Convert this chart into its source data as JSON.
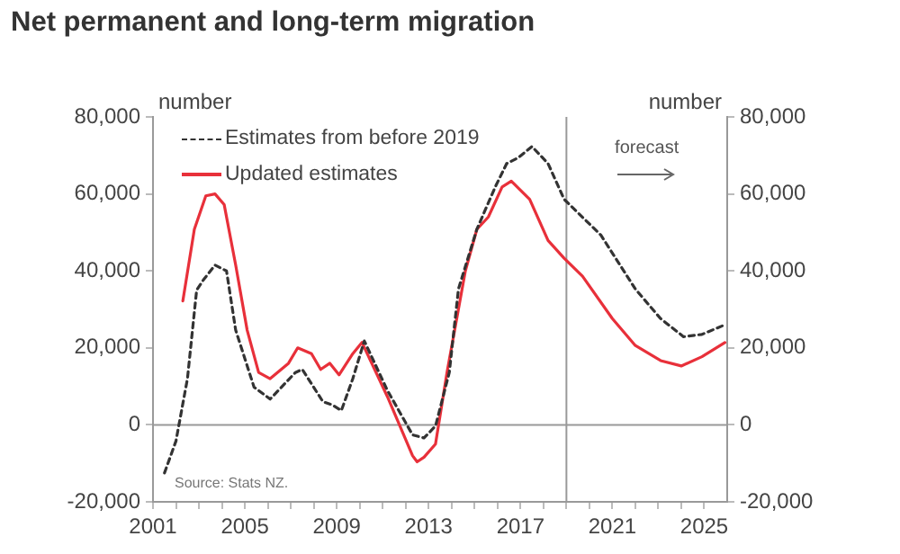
{
  "chart_data": {
    "type": "line",
    "title": "Net permanent and long-term migration",
    "ylabel": "number",
    "y2label": "number",
    "annotations": [
      "Source: Stats NZ."
    ],
    "xlim": [
      2001,
      2026
    ],
    "xticks": [
      2001,
      {
        "value": 2002,
        "label": null
      },
      {
        "value": 2003,
        "label": null
      },
      {
        "value": 2004,
        "label": null
      },
      2005,
      {
        "value": 2006,
        "label": null
      },
      {
        "value": 2007,
        "label": null
      },
      {
        "value": 2008,
        "label": null
      },
      2009,
      {
        "value": 2010,
        "label": null
      },
      {
        "value": 2011,
        "label": null
      },
      {
        "value": 2012,
        "label": null
      },
      2013,
      {
        "value": 2014,
        "label": null
      },
      {
        "value": 2015,
        "label": null
      },
      {
        "value": 2016,
        "label": null
      },
      2017,
      {
        "value": 2018,
        "label": null
      },
      {
        "value": 2019,
        "label": null
      },
      {
        "value": 2020,
        "label": null
      },
      2021,
      {
        "value": 2022,
        "label": null
      },
      {
        "value": 2023,
        "label": null
      },
      {
        "value": 2024,
        "label": null
      },
      2025
    ],
    "ylim": [
      -20000,
      80000
    ],
    "yticks": [
      {
        "value": -20000,
        "label": "-20,000"
      },
      0,
      {
        "value": 20000,
        "label": "20,000"
      },
      {
        "value": 40000,
        "label": "40,000"
      },
      {
        "value": 60000,
        "label": "60,000"
      },
      {
        "value": 80000,
        "label": "80,000"
      }
    ],
    "y2lim": [
      -20000,
      80000
    ],
    "y2ticks": [
      {
        "value": -20000,
        "label": "-20,000"
      },
      0,
      {
        "value": 20000,
        "label": "20,000"
      },
      {
        "value": 40000,
        "label": "40,000"
      },
      {
        "value": 60000,
        "label": "60,000"
      },
      {
        "value": 80000,
        "label": "80,000"
      }
    ],
    "grid": false,
    "legend": "top left",
    "marker": "none",
    "ref_lines": [
      {
        "axis": "y",
        "value": 0,
        "color": "#999999"
      },
      {
        "axis": "x",
        "value": 2019,
        "label": "forecast",
        "color": "#999999"
      }
    ],
    "series": [
      {
        "name": "Estimates from before 2019",
        "color": "#333333",
        "line_style": "dashed",
        "x": [
          2001.5,
          2002.0,
          2002.5,
          2002.9,
          2003.2,
          2003.7,
          2004.2,
          2004.6,
          2005.4,
          2006.1,
          2007.2,
          2007.5,
          2008.4,
          2008.8,
          2009.2,
          2009.7,
          2010.2,
          2011.2,
          2012.3,
          2012.8,
          2013.3,
          2013.9,
          2014.3,
          2015.1,
          2015.9,
          2016.4,
          2016.9,
          2017.5,
          2018.2,
          2018.9,
          2020.5,
          2022.0,
          2023.1,
          2024.1,
          2024.9,
          2025.9
        ],
        "values": [
          -12500,
          -4200,
          12000,
          35000,
          37700,
          41500,
          40000,
          24600,
          9800,
          6700,
          13600,
          14400,
          6000,
          5200,
          3700,
          12000,
          21800,
          9000,
          -2600,
          -3400,
          -300,
          13600,
          35300,
          50800,
          61800,
          67900,
          69400,
          72300,
          67900,
          58600,
          49300,
          35300,
          27600,
          22900,
          23500,
          26000
        ]
      },
      {
        "name": "Updated estimates",
        "color": "#e8303a",
        "line_style": "solid",
        "x": [
          2002.3,
          2002.8,
          2003.3,
          2003.7,
          2004.1,
          2004.6,
          2005.1,
          2005.6,
          2006.1,
          2006.9,
          2007.3,
          2007.9,
          2008.3,
          2008.7,
          2009.1,
          2009.7,
          2010.1,
          2011.2,
          2012.3,
          2012.5,
          2012.8,
          2013.3,
          2013.8,
          2014.6,
          2015.1,
          2015.6,
          2016.2,
          2016.6,
          2017.4,
          2018.2,
          2018.9,
          2019.7,
          2021.0,
          2022.0,
          2023.1,
          2024.0,
          2024.9,
          2025.9
        ],
        "values": [
          32200,
          50800,
          59500,
          60000,
          57200,
          41500,
          24600,
          13600,
          12000,
          16000,
          20000,
          18500,
          14400,
          16000,
          13000,
          18500,
          21400,
          7400,
          -8000,
          -9600,
          -8400,
          -5000,
          13600,
          40000,
          50800,
          54000,
          61800,
          63300,
          58600,
          47900,
          43300,
          38600,
          27600,
          20600,
          16700,
          15300,
          17700,
          21400
        ]
      }
    ]
  }
}
